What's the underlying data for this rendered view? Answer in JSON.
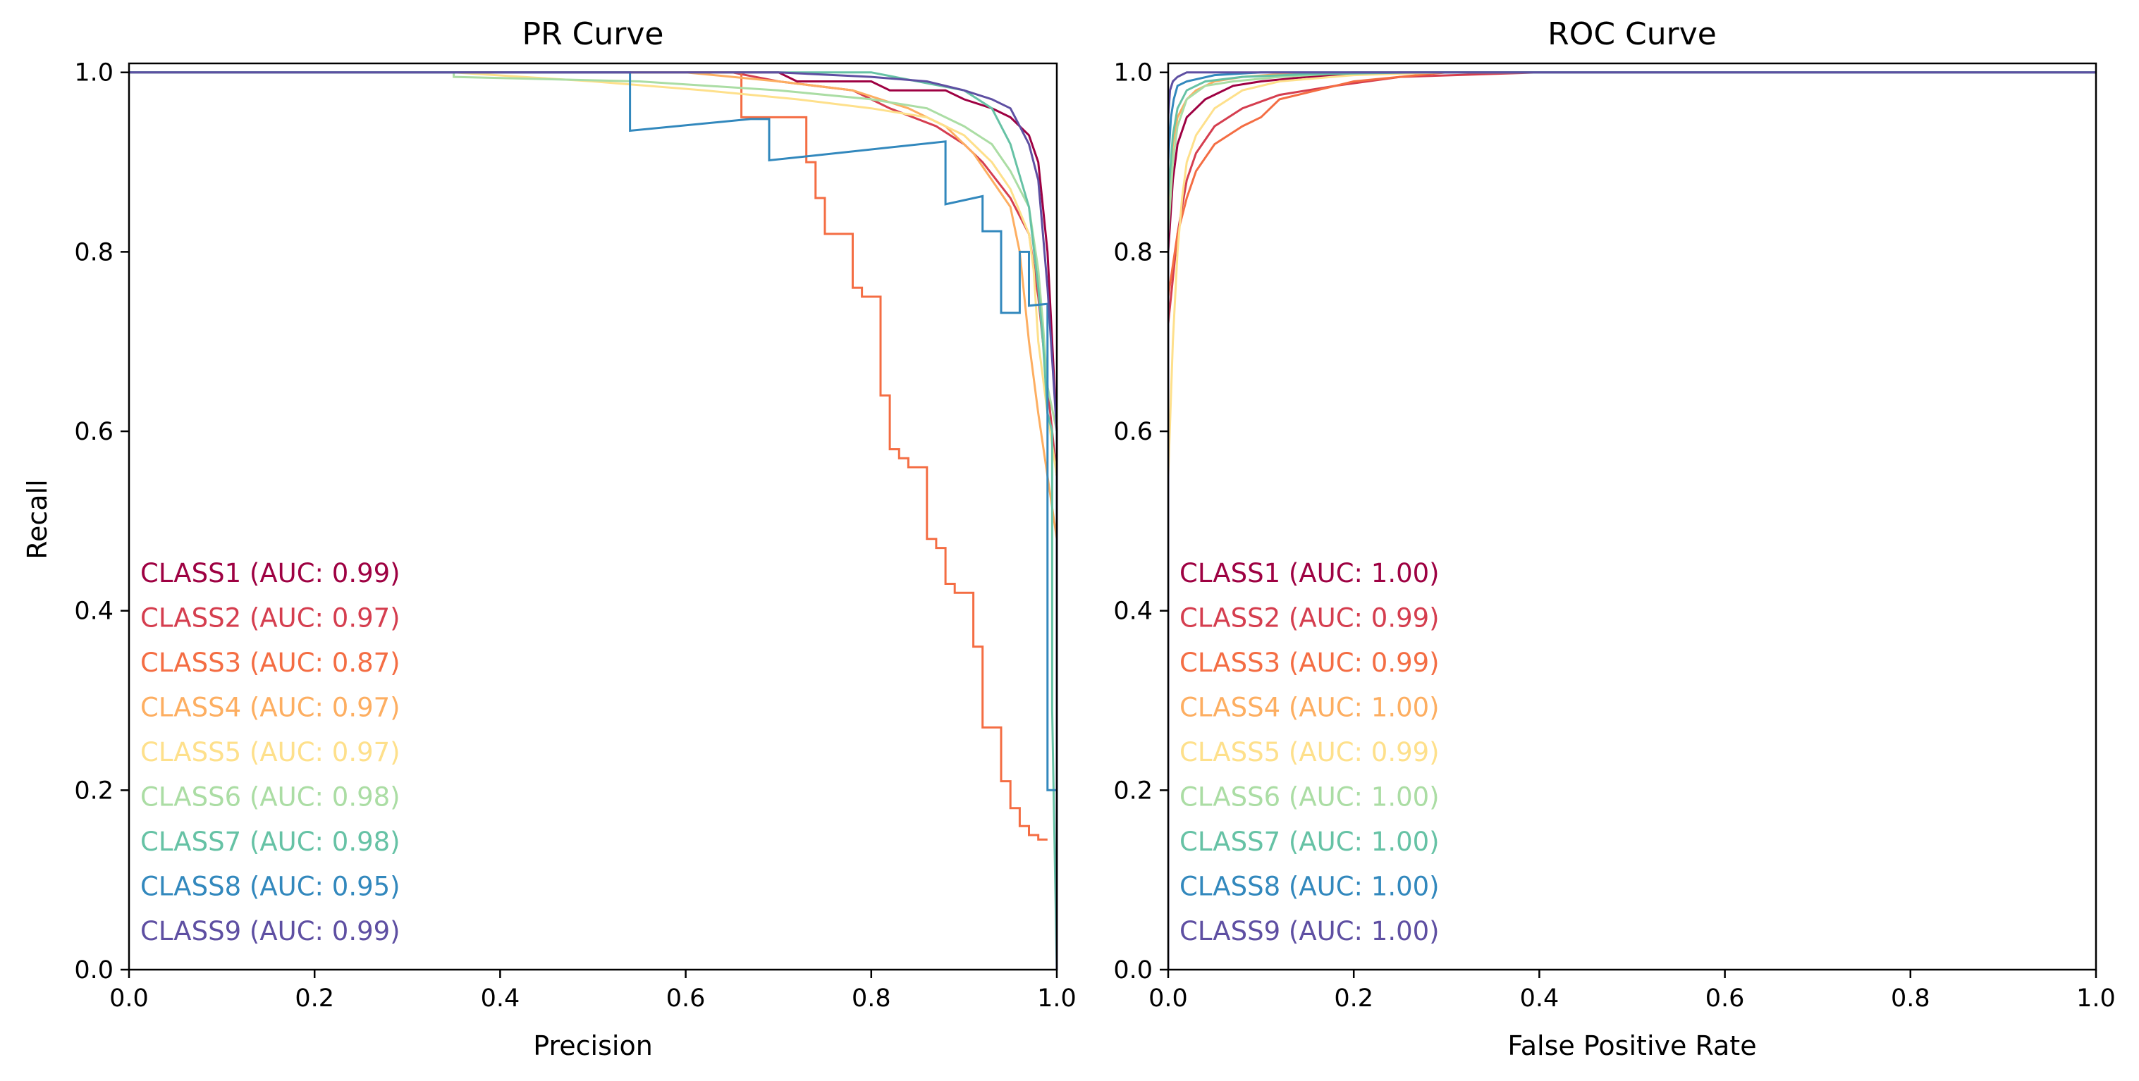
{
  "chart_data": [
    {
      "type": "line",
      "title": "PR Curve",
      "xlabel": "Precision",
      "ylabel": "Recall",
      "xlim": [
        0.0,
        1.0
      ],
      "ylim": [
        0.0,
        1.01
      ],
      "xticks": [
        "0.0",
        "0.2",
        "0.4",
        "0.6",
        "0.8",
        "1.0"
      ],
      "yticks": [
        "0.0",
        "0.2",
        "0.4",
        "0.6",
        "0.8",
        "1.0"
      ],
      "legend_position": "lower-left",
      "series": [
        {
          "name": "CLASS1 (AUC: 0.99)",
          "color": "#9e0142",
          "x": [
            0,
            0.7,
            0.72,
            0.8,
            0.82,
            0.88,
            0.9,
            0.93,
            0.95,
            0.97,
            0.98,
            0.985,
            0.99,
            0.995,
            1.0,
            1.0
          ],
          "y": [
            1.0,
            1.0,
            0.99,
            0.99,
            0.98,
            0.98,
            0.97,
            0.96,
            0.95,
            0.93,
            0.9,
            0.85,
            0.8,
            0.7,
            0.6,
            0.45
          ]
        },
        {
          "name": "CLASS2 (AUC: 0.97)",
          "color": "#d53e4f",
          "x": [
            0,
            0.65,
            0.7,
            0.78,
            0.82,
            0.87,
            0.9,
            0.92,
            0.95,
            0.97,
            0.98,
            0.99,
            1.0,
            1.0
          ],
          "y": [
            1.0,
            1.0,
            0.99,
            0.98,
            0.96,
            0.94,
            0.92,
            0.9,
            0.86,
            0.82,
            0.75,
            0.65,
            0.55,
            0.48
          ]
        },
        {
          "name": "CLASS3 (AUC: 0.87)",
          "color": "#f46d43",
          "x": [
            0,
            0.66,
            0.66,
            0.73,
            0.73,
            0.74,
            0.74,
            0.75,
            0.75,
            0.78,
            0.78,
            0.79,
            0.79,
            0.81,
            0.81,
            0.82,
            0.82,
            0.83,
            0.83,
            0.84,
            0.84,
            0.86,
            0.86,
            0.87,
            0.87,
            0.88,
            0.88,
            0.89,
            0.89,
            0.91,
            0.91,
            0.92,
            0.92,
            0.94,
            0.94,
            0.95,
            0.95,
            0.96,
            0.96,
            0.97,
            0.97,
            0.98,
            0.98,
            0.99
          ],
          "y": [
            1.0,
            1.0,
            0.95,
            0.95,
            0.9,
            0.9,
            0.86,
            0.86,
            0.82,
            0.82,
            0.76,
            0.76,
            0.75,
            0.75,
            0.64,
            0.64,
            0.58,
            0.58,
            0.57,
            0.57,
            0.56,
            0.56,
            0.48,
            0.48,
            0.47,
            0.47,
            0.43,
            0.43,
            0.42,
            0.42,
            0.36,
            0.36,
            0.27,
            0.27,
            0.21,
            0.21,
            0.18,
            0.18,
            0.16,
            0.16,
            0.15,
            0.15,
            0.145,
            0.145
          ]
        },
        {
          "name": "CLASS4 (AUC: 0.97)",
          "color": "#fdae61",
          "x": [
            0,
            0.6,
            0.7,
            0.78,
            0.84,
            0.88,
            0.91,
            0.93,
            0.95,
            0.96,
            0.97,
            0.98,
            0.99,
            1.0,
            1.0
          ],
          "y": [
            1.0,
            1.0,
            0.99,
            0.98,
            0.96,
            0.94,
            0.91,
            0.88,
            0.85,
            0.8,
            0.7,
            0.62,
            0.55,
            0.48,
            0.45
          ]
        },
        {
          "name": "CLASS5 (AUC: 0.97)",
          "color": "#fee08b",
          "x": [
            0,
            0.35,
            0.5,
            0.62,
            0.72,
            0.8,
            0.86,
            0.9,
            0.93,
            0.95,
            0.97,
            0.975,
            0.98,
            0.99,
            1.0
          ],
          "y": [
            1.0,
            1.0,
            0.99,
            0.98,
            0.97,
            0.96,
            0.95,
            0.93,
            0.9,
            0.87,
            0.82,
            0.78,
            0.7,
            0.62,
            0.55
          ]
        },
        {
          "name": "CLASS6 (AUC: 0.98)",
          "color": "#abdda4",
          "x": [
            0,
            0.35,
            0.35,
            0.55,
            0.7,
            0.8,
            0.86,
            0.9,
            0.93,
            0.95,
            0.97,
            0.98,
            0.985,
            0.99,
            1.0
          ],
          "y": [
            1.0,
            1.0,
            0.995,
            0.99,
            0.98,
            0.97,
            0.96,
            0.94,
            0.92,
            0.89,
            0.85,
            0.78,
            0.72,
            0.65,
            0.6
          ]
        },
        {
          "name": "CLASS7 (AUC: 0.98)",
          "color": "#66c2a5",
          "x": [
            0,
            0.8,
            0.85,
            0.9,
            0.93,
            0.95,
            0.97,
            0.98,
            0.985,
            0.99,
            0.995,
            0.995,
            1.0
          ],
          "y": [
            1.0,
            1.0,
            0.99,
            0.98,
            0.96,
            0.92,
            0.85,
            0.76,
            0.7,
            0.62,
            0.6,
            0.29,
            0.0
          ]
        },
        {
          "name": "CLASS8 (AUC: 0.95)",
          "color": "#3288bd",
          "x": [
            0,
            0.54,
            0.54,
            0.67,
            0.69,
            0.69,
            0.88,
            0.88,
            0.92,
            0.92,
            0.94,
            0.94,
            0.96,
            0.96,
            0.97,
            0.97,
            0.99,
            0.99,
            1.0
          ],
          "y": [
            1.0,
            1.0,
            0.935,
            0.948,
            0.948,
            0.902,
            0.923,
            0.853,
            0.862,
            0.823,
            0.823,
            0.732,
            0.732,
            0.8,
            0.8,
            0.74,
            0.742,
            0.2,
            0.2
          ]
        },
        {
          "name": "CLASS9 (AUC: 0.99)",
          "color": "#5e4fa2",
          "x": [
            0,
            0.7,
            0.8,
            0.86,
            0.9,
            0.93,
            0.95,
            0.96,
            0.97,
            0.98,
            0.985,
            0.99,
            0.995,
            1.0,
            1.0
          ],
          "y": [
            1.0,
            1.0,
            0.995,
            0.99,
            0.98,
            0.97,
            0.96,
            0.94,
            0.92,
            0.88,
            0.82,
            0.76,
            0.68,
            0.6,
            0.0
          ]
        }
      ]
    },
    {
      "type": "line",
      "title": "ROC Curve",
      "xlabel": "False Positive Rate",
      "ylabel": "",
      "xlim": [
        0.0,
        1.0
      ],
      "ylim": [
        0.0,
        1.01
      ],
      "xticks": [
        "0.0",
        "0.2",
        "0.4",
        "0.6",
        "0.8",
        "1.0"
      ],
      "yticks": [
        "0.0",
        "0.2",
        "0.4",
        "0.6",
        "0.8",
        "1.0"
      ],
      "legend_position": "lower-left",
      "series": [
        {
          "name": "CLASS1 (AUC: 1.00)",
          "color": "#9e0142",
          "x": [
            0,
            0,
            0.005,
            0.01,
            0.02,
            0.04,
            0.07,
            0.1,
            0.15,
            0.25,
            1.0
          ],
          "y": [
            0,
            0.8,
            0.88,
            0.92,
            0.95,
            0.97,
            0.985,
            0.99,
            0.995,
            1.0,
            1.0
          ]
        },
        {
          "name": "CLASS2 (AUC: 0.99)",
          "color": "#d53e4f",
          "x": [
            0,
            0,
            0.01,
            0.02,
            0.03,
            0.05,
            0.08,
            0.12,
            0.18,
            0.25,
            0.4,
            1.0
          ],
          "y": [
            0,
            0.72,
            0.82,
            0.88,
            0.91,
            0.94,
            0.96,
            0.975,
            0.985,
            0.995,
            1.0,
            1.0
          ]
        },
        {
          "name": "CLASS3 (AUC: 0.99)",
          "color": "#f46d43",
          "x": [
            0,
            0,
            0.01,
            0.02,
            0.03,
            0.05,
            0.08,
            0.1,
            0.12,
            0.16,
            0.2,
            0.3,
            1.0
          ],
          "y": [
            0,
            0.75,
            0.82,
            0.86,
            0.89,
            0.92,
            0.94,
            0.95,
            0.97,
            0.98,
            0.99,
            1.0,
            1.0
          ]
        },
        {
          "name": "CLASS4 (AUC: 1.00)",
          "color": "#fdae61",
          "x": [
            0,
            0,
            0.005,
            0.01,
            0.02,
            0.03,
            0.05,
            0.08,
            0.12,
            0.2,
            1.0
          ],
          "y": [
            0,
            0.85,
            0.92,
            0.95,
            0.97,
            0.98,
            0.99,
            0.995,
            0.998,
            1.0,
            1.0
          ]
        },
        {
          "name": "CLASS5 (AUC: 0.99)",
          "color": "#fee08b",
          "x": [
            0,
            0,
            0.005,
            0.01,
            0.015,
            0.02,
            0.03,
            0.05,
            0.08,
            0.12,
            0.2,
            0.3,
            1.0
          ],
          "y": [
            0,
            0.55,
            0.7,
            0.8,
            0.86,
            0.9,
            0.93,
            0.96,
            0.98,
            0.99,
            0.997,
            1.0,
            1.0
          ]
        },
        {
          "name": "CLASS6 (AUC: 1.00)",
          "color": "#abdda4",
          "x": [
            0,
            0,
            0.005,
            0.01,
            0.02,
            0.04,
            0.07,
            0.12,
            0.2,
            1.0
          ],
          "y": [
            0,
            0.82,
            0.9,
            0.94,
            0.97,
            0.985,
            0.99,
            0.995,
            1.0,
            1.0
          ]
        },
        {
          "name": "CLASS7 (AUC: 1.00)",
          "color": "#66c2a5",
          "x": [
            0,
            0,
            0.005,
            0.01,
            0.02,
            0.04,
            0.08,
            0.15,
            0.27,
            1.0
          ],
          "y": [
            0,
            0.86,
            0.93,
            0.96,
            0.98,
            0.99,
            0.995,
            0.998,
            1.0,
            1.0
          ]
        },
        {
          "name": "CLASS8 (AUC: 1.00)",
          "color": "#3288bd",
          "x": [
            0,
            0,
            0.003,
            0.006,
            0.01,
            0.02,
            0.05,
            0.1,
            1.0
          ],
          "y": [
            0,
            0.9,
            0.95,
            0.97,
            0.985,
            0.99,
            0.997,
            1.0,
            1.0
          ]
        },
        {
          "name": "CLASS9 (AUC: 1.00)",
          "color": "#5e4fa2",
          "x": [
            0,
            0,
            0.002,
            0.005,
            0.01,
            0.02,
            1.0
          ],
          "y": [
            0,
            0.95,
            0.98,
            0.99,
            0.995,
            1.0,
            1.0
          ]
        }
      ]
    }
  ]
}
